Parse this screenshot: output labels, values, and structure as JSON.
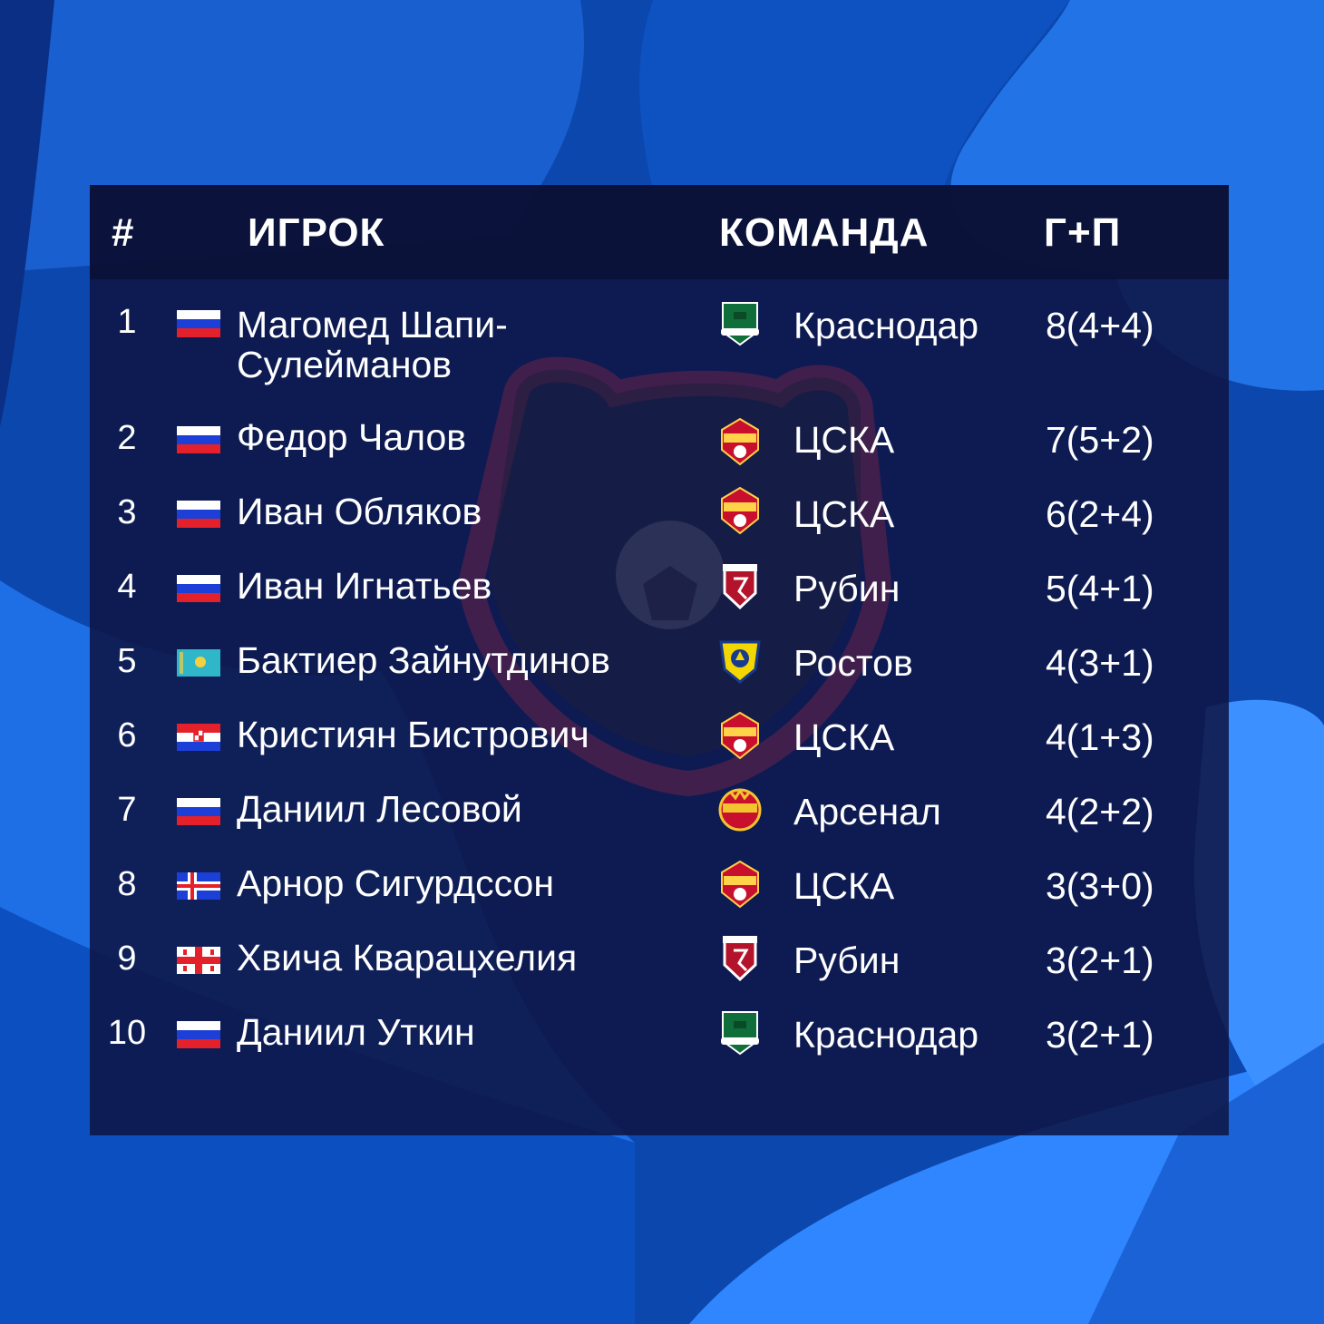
{
  "header": {
    "rank": "#",
    "player": "ИГРОК",
    "team": "КОМАНДА",
    "goals_assists": "Г+П"
  },
  "colors": {
    "background": "#0a3f9c",
    "panel": "#0e1646",
    "text": "#ffffff"
  },
  "rows": [
    {
      "rank": "1",
      "flag": "russia-flag",
      "name": "Магомед Шапи-Сулейманов",
      "team": "Краснодар",
      "logo": "krasnodar-logo",
      "stat": "8(4+4)"
    },
    {
      "rank": "2",
      "flag": "russia-flag",
      "name": "Федор Чалов",
      "team": "ЦСКА",
      "logo": "cska-logo",
      "stat": "7(5+2)"
    },
    {
      "rank": "3",
      "flag": "russia-flag",
      "name": "Иван Обляков",
      "team": "ЦСКА",
      "logo": "cska-logo",
      "stat": "6(2+4)"
    },
    {
      "rank": "4",
      "flag": "russia-flag",
      "name": "Иван Игнатьев",
      "team": "Рубин",
      "logo": "rubin-logo",
      "stat": "5(4+1)"
    },
    {
      "rank": "5",
      "flag": "kazakhstan-flag",
      "name": "Бактиер Зайнутдинов",
      "team": "Ростов",
      "logo": "rostov-logo",
      "stat": "4(3+1)"
    },
    {
      "rank": "6",
      "flag": "croatia-flag",
      "name": "Кристиян Бистрович",
      "team": "ЦСКА",
      "logo": "cska-logo",
      "stat": "4(1+3)"
    },
    {
      "rank": "7",
      "flag": "russia-flag",
      "name": "Даниил Лесовой",
      "team": "Арсенал",
      "logo": "arsenal-logo",
      "stat": "4(2+2)"
    },
    {
      "rank": "8",
      "flag": "iceland-flag",
      "name": "Арнор Сигурдссон",
      "team": "ЦСКА",
      "logo": "cska-logo",
      "stat": "3(3+0)"
    },
    {
      "rank": "9",
      "flag": "georgia-flag",
      "name": "Хвича Кварацхелия",
      "team": "Рубин",
      "logo": "rubin-logo",
      "stat": "3(2+1)"
    },
    {
      "rank": "10",
      "flag": "russia-flag",
      "name": "Даниил Уткин",
      "team": "Краснодар",
      "logo": "krasnodar-logo",
      "stat": "3(2+1)"
    }
  ]
}
